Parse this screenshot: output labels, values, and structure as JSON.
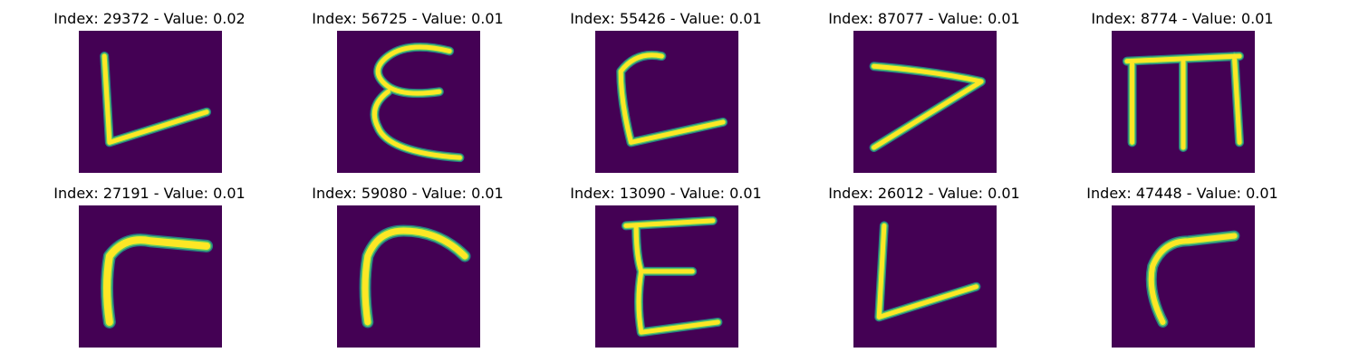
{
  "grid": {
    "cells": [
      {
        "title": "Index: 29372 - Value: 0.02",
        "glyph": "L-icon"
      },
      {
        "title": "Index: 56725 - Value: 0.01",
        "glyph": "E-icon"
      },
      {
        "title": "Index: 55426 - Value: 0.01",
        "glyph": "L-curved-icon"
      },
      {
        "title": "Index: 87077 - Value: 0.01",
        "glyph": "greater-than-icon"
      },
      {
        "title": "Index: 8774 - Value: 0.01",
        "glyph": "m-icon"
      },
      {
        "title": "Index: 27191 - Value: 0.01",
        "glyph": "r-thick-icon"
      },
      {
        "title": "Index: 59080 - Value: 0.01",
        "glyph": "r-thick-icon"
      },
      {
        "title": "Index: 13090 - Value: 0.01",
        "glyph": "E-icon"
      },
      {
        "title": "Index: 26012 - Value: 0.01",
        "glyph": "L-icon"
      },
      {
        "title": "Index: 47448 - Value: 0.01",
        "glyph": "r-icon"
      }
    ]
  },
  "colors": {
    "background": "#440154",
    "stroke_core": "#fde725",
    "stroke_mid": "#5ec962",
    "stroke_edge": "#21918c"
  }
}
